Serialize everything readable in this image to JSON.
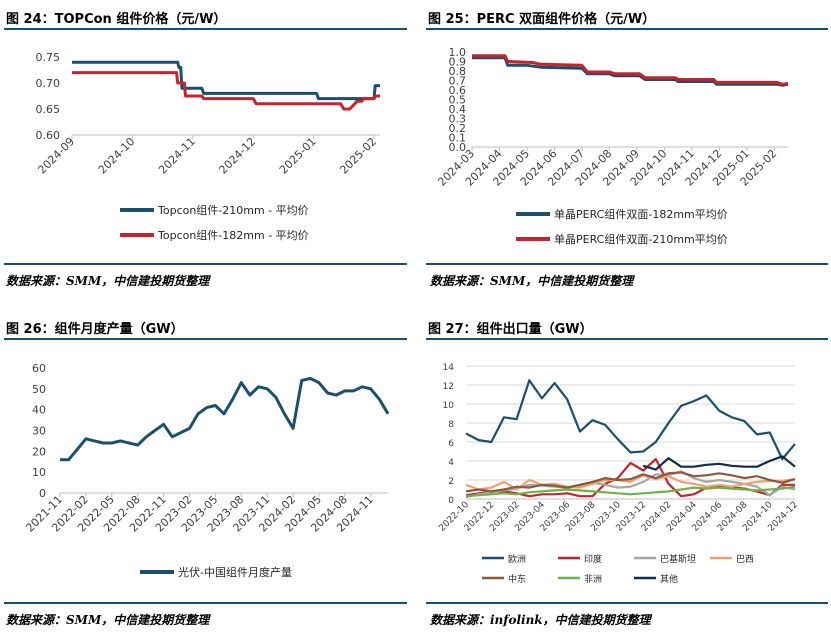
{
  "panels": {
    "p24": {
      "title": "图 24：TOPCon 组件价格（元/W）",
      "source": "数据来源：SMM，中信建投期货整理"
    },
    "p25": {
      "title": "图 25：PERC 双面组件价格（元/W）",
      "source": "数据来源：SMM，中信建投期货整理"
    },
    "p26": {
      "title": "图 26：组件月度产量（GW）",
      "source": "数据来源：SMM，中信建投期货整理"
    },
    "p27": {
      "title": "图 27：组件出口量（GW）",
      "source": "数据来源：infolink，中信建投期货整理"
    }
  },
  "chart_data": [
    {
      "id": "c24",
      "type": "line",
      "title": "TOPCon 组件价格（元/W）",
      "x_ticks": [
        "2024-09",
        "2024-10",
        "2024-11",
        "2024-12",
        "2025-01",
        "2025-02"
      ],
      "x_range": [
        0,
        5.1
      ],
      "ylim": [
        0.6,
        0.75
      ],
      "y_ticks": [
        0.6,
        0.65,
        0.7,
        0.75
      ],
      "series": [
        {
          "name": "Topcon组件-210mm - 平均价",
          "color": "#1a4f6e",
          "points": [
            [
              0,
              0.74
            ],
            [
              1.75,
              0.74
            ],
            [
              1.77,
              0.73
            ],
            [
              1.8,
              0.73
            ],
            [
              1.82,
              0.69
            ],
            [
              2.15,
              0.69
            ],
            [
              2.18,
              0.68
            ],
            [
              4.05,
              0.68
            ],
            [
              4.08,
              0.67
            ],
            [
              5.0,
              0.67
            ],
            [
              5.02,
              0.695
            ],
            [
              5.1,
              0.695
            ]
          ]
        },
        {
          "name": "Topcon组件-182mm - 平均价",
          "color": "#c8232c",
          "points": [
            [
              0,
              0.72
            ],
            [
              1.73,
              0.72
            ],
            [
              1.75,
              0.7
            ],
            [
              1.86,
              0.7
            ],
            [
              1.88,
              0.675
            ],
            [
              2.15,
              0.675
            ],
            [
              2.18,
              0.67
            ],
            [
              3.0,
              0.67
            ],
            [
              3.05,
              0.66
            ],
            [
              4.45,
              0.66
            ],
            [
              4.5,
              0.65
            ],
            [
              4.6,
              0.65
            ],
            [
              4.72,
              0.665
            ],
            [
              4.8,
              0.665
            ],
            [
              4.82,
              0.67
            ],
            [
              5.0,
              0.67
            ],
            [
              5.02,
              0.675
            ],
            [
              5.1,
              0.675
            ]
          ]
        }
      ]
    },
    {
      "id": "c25",
      "type": "line",
      "title": "PERC 双面组件价格（元/W）",
      "x_ticks": [
        "2024-03",
        "2024-04",
        "2024-05",
        "2024-06",
        "2024-07",
        "2024-08",
        "2024-09",
        "2024-10",
        "2024-11",
        "2024-12",
        "2025-01",
        "2025-02"
      ],
      "x_range": [
        0,
        11.5
      ],
      "ylim": [
        0,
        1
      ],
      "y_ticks": [
        0,
        0.1,
        0.2,
        0.3,
        0.4,
        0.5,
        0.6,
        0.7,
        0.8,
        0.9,
        1
      ],
      "series": [
        {
          "name": "单晶PERC组件双面-182mm平均价",
          "color": "#1a4f6e",
          "points": [
            [
              0,
              0.94
            ],
            [
              1.2,
              0.94
            ],
            [
              1.3,
              0.86
            ],
            [
              2.0,
              0.86
            ],
            [
              2.5,
              0.84
            ],
            [
              4.0,
              0.83
            ],
            [
              4.2,
              0.77
            ],
            [
              5.0,
              0.77
            ],
            [
              5.2,
              0.75
            ],
            [
              6.1,
              0.75
            ],
            [
              6.3,
              0.71
            ],
            [
              7.4,
              0.71
            ],
            [
              7.5,
              0.69
            ],
            [
              8.8,
              0.69
            ],
            [
              8.9,
              0.66
            ],
            [
              11.1,
              0.66
            ],
            [
              11.3,
              0.65
            ],
            [
              11.5,
              0.66
            ]
          ]
        },
        {
          "name": "单晶PERC组件双面-210mm平均价",
          "color": "#c8232c",
          "points": [
            [
              0,
              0.96
            ],
            [
              1.2,
              0.96
            ],
            [
              1.3,
              0.9
            ],
            [
              2.2,
              0.89
            ],
            [
              2.5,
              0.87
            ],
            [
              4.0,
              0.86
            ],
            [
              4.2,
              0.79
            ],
            [
              5.0,
              0.79
            ],
            [
              5.2,
              0.77
            ],
            [
              6.1,
              0.77
            ],
            [
              6.3,
              0.73
            ],
            [
              7.4,
              0.73
            ],
            [
              7.5,
              0.71
            ],
            [
              8.8,
              0.71
            ],
            [
              8.9,
              0.68
            ],
            [
              11.1,
              0.68
            ],
            [
              11.3,
              0.66
            ],
            [
              11.5,
              0.67
            ]
          ]
        }
      ]
    },
    {
      "id": "c26",
      "type": "line",
      "title": "组件月度产量（GW）",
      "x_ticks": [
        "2021-11",
        "2022-02",
        "2022-05",
        "2022-08",
        "2022-11",
        "2023-02",
        "2023-05",
        "2023-08",
        "2023-11",
        "2024-02",
        "2024-05",
        "2024-08",
        "2024-11"
      ],
      "x_range": [
        0,
        38
      ],
      "ylim": [
        0,
        60
      ],
      "y_ticks": [
        0,
        10,
        20,
        30,
        40,
        50,
        60
      ],
      "series": [
        {
          "name": "光伏-中国组件月度产量",
          "color": "#1a4f6e",
          "values": [
            16,
            16,
            21,
            26,
            25,
            24,
            24,
            25,
            24,
            23,
            27,
            30,
            33,
            27,
            29,
            31,
            38,
            41,
            42,
            38,
            45,
            53,
            47,
            51,
            50,
            46,
            38,
            31,
            54,
            55,
            53,
            48,
            47,
            49,
            49,
            51,
            50,
            45,
            38
          ]
        }
      ]
    },
    {
      "id": "c27",
      "type": "line",
      "title": "组件出口量（GW）",
      "x_ticks": [
        "2022-10",
        "2022-12",
        "2023-02",
        "2023-04",
        "2023-06",
        "2023-08",
        "2023-10",
        "2023-12",
        "2024-02",
        "2024-04",
        "2024-06",
        "2024-08",
        "2024-10",
        "2024-12"
      ],
      "x_range": [
        0,
        26
      ],
      "ylim": [
        0,
        14
      ],
      "y_ticks": [
        0,
        2,
        4,
        6,
        8,
        10,
        12,
        14
      ],
      "series": [
        {
          "name": "欧洲",
          "color": "#1a4f6e",
          "values": [
            6.9,
            6.2,
            6.0,
            8.6,
            8.4,
            12.5,
            10.6,
            12.2,
            10.5,
            7.1,
            8.3,
            7.8,
            6.3,
            4.9,
            5.0,
            6.0,
            8.0,
            9.8,
            10.3,
            10.9,
            9.3,
            8.6,
            8.2,
            6.8,
            7.0,
            4.2,
            5.8
          ]
        },
        {
          "name": "印度",
          "color": "#c8232c",
          "values": [
            0.4,
            0.6,
            0.8,
            0.8,
            0.6,
            0.3,
            0.5,
            0.5,
            0.6,
            0.3,
            0.3,
            1.6,
            2.2,
            3.8,
            3.0,
            4.2,
            1.6,
            0.3,
            0.5,
            1.2,
            1.3,
            1.2,
            1.1,
            0.8,
            0.4,
            1.5,
            1.5
          ]
        },
        {
          "name": "巴基斯坦",
          "color": "#a6a6a6",
          "values": [
            0.2,
            0.5,
            0.7,
            0.9,
            1.1,
            1.5,
            1.4,
            1.3,
            1.2,
            1.4,
            1.7,
            1.5,
            1.2,
            1.3,
            1.8,
            2.6,
            2.5,
            2.9,
            2.2,
            1.8,
            2.0,
            1.8,
            1.6,
            1.3,
            0.4,
            1.3,
            1.0
          ]
        },
        {
          "name": "巴西",
          "color": "#f0a070",
          "values": [
            1.5,
            1.0,
            1.2,
            1.8,
            1.0,
            2.0,
            1.5,
            1.6,
            1.3,
            1.2,
            1.6,
            2.0,
            2.0,
            1.8,
            2.5,
            2.1,
            2.4,
            1.8,
            1.6,
            1.3,
            1.5,
            1.3,
            1.6,
            1.8,
            1.9,
            1.9,
            2.1
          ]
        },
        {
          "name": "中东",
          "color": "#8b5a3c",
          "values": [
            0.8,
            1.0,
            0.8,
            1.0,
            1.3,
            1.2,
            1.5,
            1.4,
            1.2,
            1.5,
            1.8,
            2.2,
            2.0,
            2.1,
            2.6,
            2.2,
            2.7,
            2.8,
            2.4,
            2.5,
            2.7,
            2.5,
            2.2,
            2.4,
            2.0,
            1.7,
            2.1
          ]
        },
        {
          "name": "非洲",
          "color": "#6cb34a",
          "values": [
            0.3,
            0.4,
            0.5,
            0.6,
            0.5,
            0.7,
            0.8,
            0.9,
            1.0,
            0.9,
            0.8,
            0.7,
            0.6,
            0.5,
            0.6,
            0.7,
            0.8,
            1.0,
            1.2,
            1.1,
            1.2,
            1.1,
            1.0,
            0.9,
            1.0,
            1.1,
            1.3
          ]
        },
        {
          "name": "其他",
          "color": "#0f2d46",
          "values": [
            null,
            null,
            null,
            null,
            null,
            null,
            null,
            null,
            null,
            null,
            null,
            null,
            null,
            null,
            3.5,
            3.1,
            4.3,
            3.4,
            3.4,
            3.6,
            3.7,
            3.5,
            3.4,
            3.4,
            4.0,
            4.5,
            3.4
          ]
        }
      ]
    }
  ]
}
